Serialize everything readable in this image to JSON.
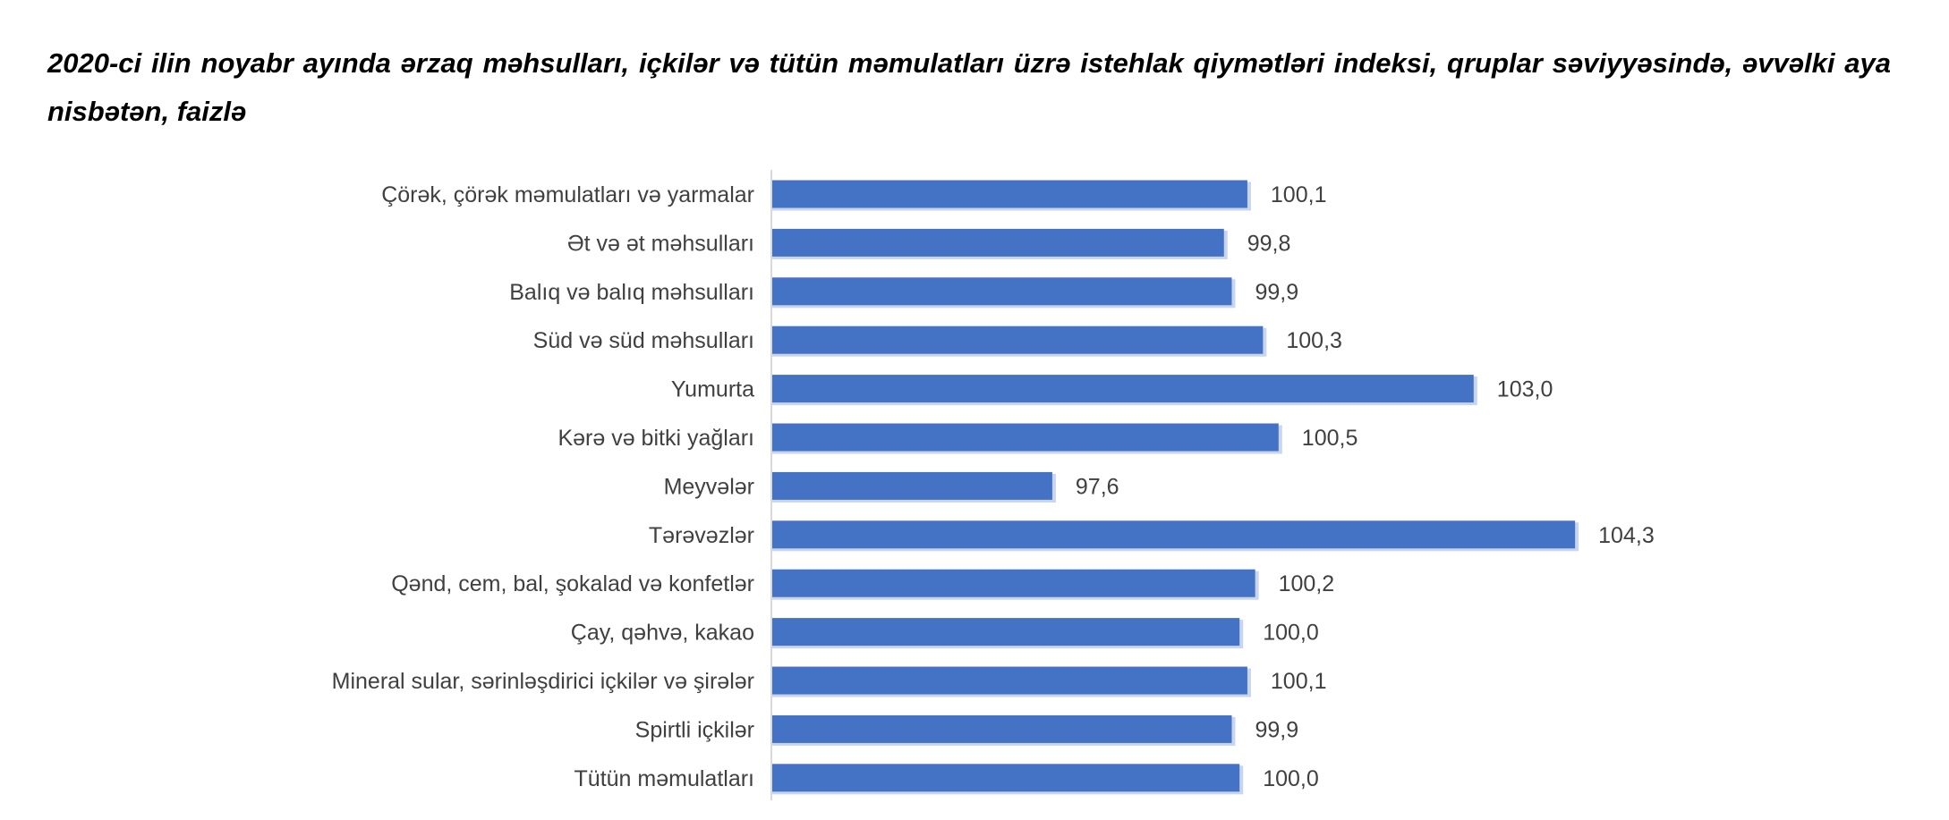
{
  "chart_data": {
    "type": "bar",
    "orientation": "horizontal",
    "title": "2020-ci ilin noyabr ayında ərzaq məhsulları, içkilər və tütün məmulatları üzrə istehlak qiymətləri indeksi, qruplar səviyyəsində, əvvəlki aya nisbətən, faizlə",
    "categories": [
      "Çörək, çörək məmulatları  və yarmalar",
      "Ət və ət məhsulları",
      "Balıq və balıq məhsulları",
      "Süd və süd məhsulları",
      "Yumurta",
      "Kərə və bitki yağları",
      "Meyvələr",
      "Tərəvəzlər",
      "Qənd, cem, bal, şokalad və konfetlər",
      "Çay, qəhvə, kakao",
      "Mineral sular, sərinləşdirici içkilər və şirələr",
      "Spirtli içkilər",
      "Tütün məmulatları"
    ],
    "values": [
      100.1,
      99.8,
      99.9,
      100.3,
      103.0,
      100.5,
      97.6,
      104.3,
      100.2,
      100.0,
      100.1,
      99.9,
      100.0
    ],
    "value_labels": [
      "100,1",
      "99,8",
      "99,9",
      "100,3",
      "103,0",
      "100,5",
      "97,6",
      "104,3",
      "100,2",
      "100,0",
      "100,1",
      "99,9",
      "100,0"
    ],
    "xlim": [
      94,
      106
    ],
    "grid": false,
    "legend": "none",
    "colors": {
      "bar": "#4472C4",
      "bar_shadow": "#C9D5EE",
      "axis": "#D9D9D9",
      "text": "#404040"
    }
  }
}
